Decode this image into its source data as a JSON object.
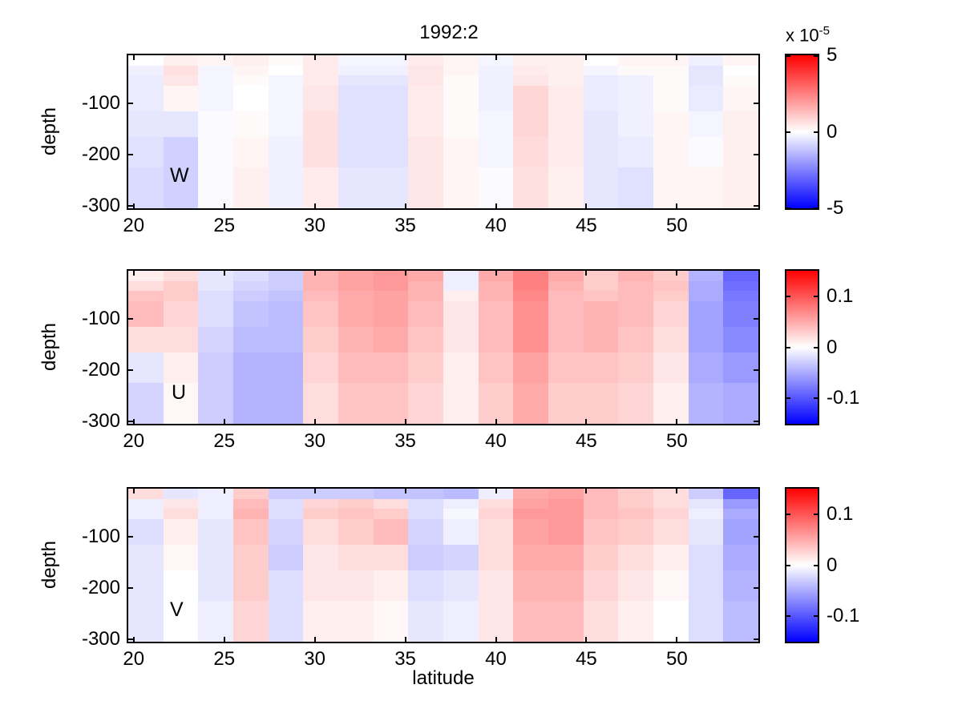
{
  "figure": {
    "title": "1992:2",
    "xlabel": "latitude",
    "ylabel": "depth",
    "background": "#ffffff",
    "frame_color": "#000000",
    "text_color": "#000000"
  },
  "axes": {
    "lat_min": 19.7,
    "lat_max": 54.5,
    "x_ticks": [
      20,
      25,
      30,
      35,
      40,
      45,
      50
    ],
    "depth_ticks": [
      -100,
      -200,
      -300
    ],
    "depth_top": -5,
    "depth_bottom": -305,
    "lat_edges": [
      19.7,
      21.633,
      23.567,
      25.5,
      27.433,
      29.367,
      31.3,
      33.233,
      35.167,
      37.1,
      39.033,
      40.967,
      42.9,
      44.833,
      46.767,
      48.7,
      50.633,
      52.567,
      54.5
    ],
    "depth_edges": [
      -5,
      -25,
      -45,
      -65,
      -115,
      -165,
      -225,
      -305
    ]
  },
  "colormap": {
    "max_color": "#ff0000",
    "mid_color": "#ffffff",
    "min_color": "#0000ff"
  },
  "chart_data": [
    {
      "type": "heatmap",
      "label": "W",
      "x": "latitude",
      "y": "depth",
      "value_units": "10^-5",
      "clim": [
        -5,
        5
      ],
      "colorbar": {
        "exponent_prefix": "x 10",
        "exponent": "-5",
        "ticks": [
          {
            "value": 5,
            "label": "5"
          },
          {
            "value": 0,
            "label": "0"
          },
          {
            "value": -5,
            "label": "-5"
          }
        ]
      },
      "values": [
        [
          0.0,
          0.3,
          0.2,
          0.3,
          0.1,
          0.4,
          -0.2,
          -0.2,
          0.4,
          0.2,
          -0.2,
          0.3,
          0.3,
          0.0,
          0.2,
          0.2,
          -0.3,
          0.2
        ],
        [
          -0.3,
          0.6,
          -0.2,
          0.2,
          0.0,
          0.4,
          -0.3,
          -0.3,
          0.5,
          0.2,
          -0.3,
          0.4,
          0.3,
          -0.2,
          0.1,
          0.1,
          -0.5,
          0.0
        ],
        [
          -0.4,
          0.5,
          -0.2,
          0.1,
          -0.2,
          0.4,
          -0.5,
          -0.5,
          0.5,
          0.1,
          -0.3,
          0.5,
          0.3,
          -0.4,
          -0.3,
          0.1,
          -0.5,
          0.1
        ],
        [
          -0.4,
          0.2,
          -0.2,
          0.0,
          -0.2,
          0.5,
          -0.6,
          -0.6,
          0.4,
          0.1,
          -0.3,
          0.8,
          0.4,
          -0.4,
          -0.3,
          0.1,
          -0.4,
          0.2
        ],
        [
          -0.5,
          -0.5,
          -0.1,
          0.1,
          -0.2,
          0.6,
          -0.6,
          -0.6,
          0.4,
          0.1,
          -0.2,
          0.8,
          0.4,
          -0.5,
          -0.3,
          0.2,
          -0.2,
          0.3
        ],
        [
          -0.6,
          -0.9,
          -0.1,
          0.2,
          -0.3,
          0.6,
          -0.6,
          -0.6,
          0.5,
          0.2,
          -0.2,
          0.7,
          0.4,
          -0.5,
          -0.4,
          0.2,
          -0.1,
          0.3
        ],
        [
          -0.7,
          -0.9,
          -0.1,
          0.3,
          -0.3,
          0.4,
          -0.5,
          -0.5,
          0.5,
          0.2,
          -0.1,
          0.6,
          0.3,
          -0.5,
          -0.6,
          0.2,
          0.2,
          0.3
        ]
      ]
    },
    {
      "type": "heatmap",
      "label": "U",
      "x": "latitude",
      "y": "depth",
      "value_units": "1",
      "clim": [
        -0.15,
        0.15
      ],
      "colorbar": {
        "ticks": [
          {
            "value": 0.1,
            "label": "0.1"
          },
          {
            "value": 0,
            "label": "0"
          },
          {
            "value": -0.1,
            "label": "-0.1"
          }
        ]
      },
      "values": [
        [
          0.01,
          0.02,
          -0.015,
          -0.02,
          -0.03,
          0.045,
          0.055,
          0.06,
          0.05,
          -0.01,
          0.05,
          0.075,
          0.05,
          0.03,
          0.045,
          0.03,
          -0.045,
          -0.09
        ],
        [
          0.02,
          0.03,
          -0.015,
          -0.025,
          -0.03,
          0.045,
          0.055,
          0.06,
          0.045,
          -0.01,
          0.045,
          0.075,
          0.045,
          0.03,
          0.04,
          0.035,
          -0.05,
          -0.085
        ],
        [
          0.035,
          0.03,
          -0.02,
          -0.03,
          -0.035,
          0.04,
          0.05,
          0.055,
          0.045,
          0.01,
          0.045,
          0.07,
          0.04,
          0.035,
          0.04,
          0.03,
          -0.05,
          -0.08
        ],
        [
          0.04,
          0.025,
          -0.02,
          -0.035,
          -0.04,
          0.035,
          0.05,
          0.055,
          0.04,
          0.015,
          0.04,
          0.065,
          0.04,
          0.045,
          0.04,
          0.025,
          -0.055,
          -0.075
        ],
        [
          0.02,
          0.02,
          -0.025,
          -0.04,
          -0.04,
          0.03,
          0.045,
          0.05,
          0.035,
          0.015,
          0.04,
          0.065,
          0.04,
          0.045,
          0.035,
          0.02,
          -0.055,
          -0.07
        ],
        [
          -0.015,
          0.01,
          -0.03,
          -0.045,
          -0.045,
          0.025,
          0.04,
          0.04,
          0.03,
          0.01,
          0.035,
          0.055,
          0.035,
          0.035,
          0.03,
          0.015,
          -0.05,
          -0.06
        ],
        [
          -0.025,
          0.005,
          -0.03,
          -0.045,
          -0.045,
          0.02,
          0.035,
          0.035,
          0.025,
          0.01,
          0.03,
          0.05,
          0.03,
          0.03,
          0.025,
          0.01,
          -0.045,
          -0.05
        ]
      ]
    },
    {
      "type": "heatmap",
      "label": "V",
      "x": "latitude",
      "y": "depth",
      "value_units": "1",
      "clim": [
        -0.15,
        0.15
      ],
      "colorbar": {
        "ticks": [
          {
            "value": 0.1,
            "label": "0.1"
          },
          {
            "value": 0,
            "label": "0"
          },
          {
            "value": -0.1,
            "label": "-0.1"
          }
        ]
      },
      "values": [
        [
          0.02,
          -0.015,
          -0.01,
          0.03,
          -0.03,
          -0.03,
          -0.03,
          -0.035,
          -0.035,
          -0.04,
          -0.01,
          0.05,
          0.055,
          0.04,
          0.03,
          0.02,
          -0.03,
          -0.09
        ],
        [
          -0.01,
          0.015,
          -0.01,
          0.04,
          -0.02,
          0.025,
          0.03,
          0.02,
          -0.02,
          -0.01,
          0.02,
          0.055,
          0.06,
          0.04,
          0.03,
          0.02,
          -0.015,
          -0.06
        ],
        [
          -0.01,
          0.02,
          -0.01,
          0.045,
          -0.02,
          0.03,
          0.035,
          0.03,
          -0.02,
          -0.005,
          0.025,
          0.06,
          0.06,
          0.04,
          0.035,
          0.025,
          -0.01,
          -0.05
        ],
        [
          -0.02,
          0.01,
          -0.015,
          0.035,
          -0.025,
          0.02,
          0.03,
          0.04,
          -0.025,
          -0.01,
          0.02,
          0.055,
          0.06,
          0.035,
          0.03,
          0.02,
          -0.015,
          -0.055
        ],
        [
          -0.015,
          0.005,
          -0.015,
          0.03,
          -0.03,
          0.015,
          0.02,
          0.02,
          -0.03,
          -0.025,
          0.02,
          0.05,
          0.05,
          0.03,
          0.02,
          0.01,
          -0.02,
          -0.05
        ],
        [
          -0.015,
          0.0,
          -0.015,
          0.03,
          -0.02,
          0.015,
          0.015,
          0.01,
          -0.02,
          -0.015,
          0.015,
          0.045,
          0.045,
          0.025,
          0.015,
          0.005,
          -0.02,
          -0.045
        ],
        [
          -0.015,
          0.0,
          -0.01,
          0.025,
          -0.02,
          0.01,
          0.01,
          0.005,
          -0.015,
          -0.01,
          0.015,
          0.04,
          0.04,
          0.02,
          0.01,
          0.0,
          -0.02,
          -0.04
        ]
      ]
    }
  ]
}
